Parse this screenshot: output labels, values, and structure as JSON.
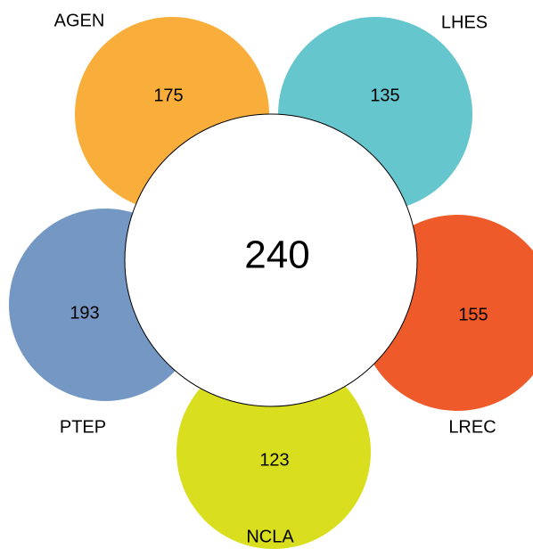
{
  "center": {
    "count": "240",
    "color": "#ffffff"
  },
  "petals": [
    {
      "id": "agen",
      "label": "AGEN",
      "count": "175",
      "color": "#F9AE3C"
    },
    {
      "id": "lhes",
      "label": "LHES",
      "count": "135",
      "color": "#66C6CE"
    },
    {
      "id": "lrec",
      "label": "LREC",
      "count": "155",
      "color": "#EF5A2A"
    },
    {
      "id": "ncla",
      "label": "NCLA",
      "count": "123",
      "color": "#D9DF1E"
    },
    {
      "id": "ptep",
      "label": "PTEP",
      "count": "193",
      "color": "#7497C3"
    }
  ]
}
